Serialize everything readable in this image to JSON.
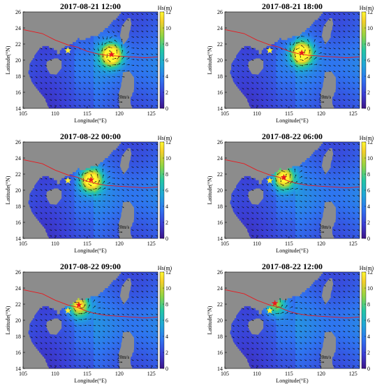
{
  "chart_data": [
    {
      "type": "heatmap",
      "title": "2017-08-21 12:00",
      "xlabel": "Longitude(°E)",
      "ylabel": "Latitude(°N)",
      "xlim": [
        105,
        126
      ],
      "ylim": [
        14,
        26
      ],
      "x_ticks": [
        105,
        110,
        115,
        120,
        125
      ],
      "y_ticks": [
        14,
        16,
        18,
        20,
        22,
        24,
        26
      ],
      "colorbar": {
        "label": "Hs(m)",
        "range": [
          0,
          12
        ],
        "ticks": [
          0,
          2,
          4,
          6,
          8,
          10,
          12
        ]
      },
      "vector_scale_label": "20m/s",
      "typhoon_center": {
        "lon": 118.8,
        "lat": 20.7
      },
      "reference_point": {
        "lon": 112.0,
        "lat": 21.2
      },
      "peak_hs": 11.5
    },
    {
      "type": "heatmap",
      "title": "2017-08-21 18:00",
      "xlabel": "Longitude(°E)",
      "ylabel": "Latitude(°N)",
      "xlim": [
        105,
        126
      ],
      "ylim": [
        14,
        26
      ],
      "x_ticks": [
        105,
        110,
        115,
        120,
        125
      ],
      "y_ticks": [
        14,
        16,
        18,
        20,
        22,
        24,
        26
      ],
      "colorbar": {
        "label": "Hs(m)",
        "range": [
          0,
          12
        ],
        "ticks": [
          0,
          2,
          4,
          6,
          8,
          10,
          12
        ]
      },
      "vector_scale_label": "20m/s",
      "typhoon_center": {
        "lon": 117.0,
        "lat": 20.9
      },
      "reference_point": {
        "lon": 112.0,
        "lat": 21.2
      },
      "peak_hs": 11.5
    },
    {
      "type": "heatmap",
      "title": "2017-08-22 00:00",
      "xlabel": "Longitude(°E)",
      "ylabel": "Latitude(°N)",
      "xlim": [
        105,
        126
      ],
      "ylim": [
        14,
        26
      ],
      "x_ticks": [
        105,
        110,
        115,
        120,
        125
      ],
      "y_ticks": [
        14,
        16,
        18,
        20,
        22,
        24,
        26
      ],
      "colorbar": {
        "label": "Hs(m)",
        "range": [
          0,
          12
        ],
        "ticks": [
          0,
          2,
          4,
          6,
          8,
          10,
          12
        ]
      },
      "vector_scale_label": "20m/s",
      "typhoon_center": {
        "lon": 115.6,
        "lat": 21.3
      },
      "reference_point": {
        "lon": 112.0,
        "lat": 21.2
      },
      "peak_hs": 11.0
    },
    {
      "type": "heatmap",
      "title": "2017-08-22 06:00",
      "xlabel": "Longitude(°E)",
      "ylabel": "Latitude(°N)",
      "xlim": [
        105,
        126
      ],
      "ylim": [
        14,
        26
      ],
      "x_ticks": [
        105,
        110,
        115,
        120,
        125
      ],
      "y_ticks": [
        14,
        16,
        18,
        20,
        22,
        24,
        26
      ],
      "colorbar": {
        "label": "Hs(m)",
        "range": [
          0,
          12
        ],
        "ticks": [
          0,
          2,
          4,
          6,
          8,
          10,
          12
        ]
      },
      "vector_scale_label": "20m/s",
      "typhoon_center": {
        "lon": 114.2,
        "lat": 21.6
      },
      "reference_point": {
        "lon": 112.0,
        "lat": 21.2
      },
      "peak_hs": 10.0
    },
    {
      "type": "heatmap",
      "title": "2017-08-22 09:00",
      "xlabel": "Longitude(°E)",
      "ylabel": "Latitude(°N)",
      "xlim": [
        105,
        126
      ],
      "ylim": [
        14,
        26
      ],
      "x_ticks": [
        105,
        110,
        115,
        120,
        125
      ],
      "y_ticks": [
        14,
        16,
        18,
        20,
        22,
        24,
        26
      ],
      "colorbar": {
        "label": "Hs(m)",
        "range": [
          0,
          12
        ],
        "ticks": [
          0,
          2,
          4,
          6,
          8,
          10,
          12
        ]
      },
      "vector_scale_label": "20m/s",
      "typhoon_center": {
        "lon": 113.7,
        "lat": 21.9
      },
      "reference_point": {
        "lon": 112.0,
        "lat": 21.2
      },
      "peak_hs": 9.0
    },
    {
      "type": "heatmap",
      "title": "2017-08-22 12:00",
      "xlabel": "Longitude(°E)",
      "ylabel": "Latitude(°N)",
      "xlim": [
        105,
        126
      ],
      "ylim": [
        14,
        26
      ],
      "x_ticks": [
        105,
        110,
        115,
        120,
        125
      ],
      "y_ticks": [
        14,
        16,
        18,
        20,
        22,
        24,
        26
      ],
      "colorbar": {
        "label": "Hs(m)",
        "range": [
          0,
          12
        ],
        "ticks": [
          0,
          2,
          4,
          6,
          8,
          10,
          12
        ]
      },
      "vector_scale_label": "20m/s",
      "typhoon_center": {
        "lon": 112.8,
        "lat": 22.1
      },
      "reference_point": {
        "lon": 112.0,
        "lat": 21.2
      },
      "peak_hs": 6.5
    }
  ],
  "typhoon_track": [
    [
      105,
      23.8
    ],
    [
      108,
      23.3
    ],
    [
      110,
      22.5
    ],
    [
      112,
      21.9
    ],
    [
      113.5,
      21.6
    ],
    [
      115,
      21.1
    ],
    [
      116.5,
      20.8
    ],
    [
      118,
      20.6
    ],
    [
      120,
      20.5
    ],
    [
      122,
      20.4
    ],
    [
      124,
      20.3
    ],
    [
      126,
      20.4
    ]
  ],
  "coastline": [
    [
      105,
      22.2
    ],
    [
      106.5,
      21.8
    ],
    [
      107.7,
      21.6
    ],
    [
      108.6,
      21.7
    ],
    [
      109.5,
      21.5
    ],
    [
      110.2,
      21.2
    ],
    [
      110.5,
      20.6
    ],
    [
      111.0,
      21.4
    ],
    [
      112.0,
      21.8
    ],
    [
      113.0,
      22.2
    ],
    [
      113.6,
      22.7
    ],
    [
      114.2,
      22.4
    ],
    [
      115.0,
      22.8
    ],
    [
      116.5,
      23.0
    ],
    [
      117.5,
      23.6
    ],
    [
      118.7,
      24.5
    ],
    [
      119.8,
      25.5
    ],
    [
      120.5,
      26
    ]
  ],
  "hainan": [
    [
      108.6,
      19.2
    ],
    [
      109.2,
      18.3
    ],
    [
      110.2,
      18.2
    ],
    [
      111.0,
      19.0
    ],
    [
      111.0,
      19.9
    ],
    [
      110.3,
      20.2
    ],
    [
      109.5,
      20.1
    ],
    [
      108.7,
      19.8
    ]
  ],
  "taiwan": [
    [
      120.1,
      23.0
    ],
    [
      120.7,
      22.0
    ],
    [
      121.3,
      22.6
    ],
    [
      121.9,
      24.5
    ],
    [
      121.7,
      25.2
    ],
    [
      121.2,
      25.1
    ],
    [
      120.4,
      24.2
    ]
  ],
  "vietnam": [
    [
      105,
      22.2
    ],
    [
      106.5,
      21.8
    ],
    [
      107.7,
      21.6
    ],
    [
      106.8,
      20.6
    ],
    [
      106.0,
      19.5
    ],
    [
      105.8,
      18.4
    ],
    [
      106.4,
      17.2
    ],
    [
      107.2,
      16.3
    ],
    [
      108.3,
      15.3
    ],
    [
      109.0,
      14.0
    ],
    [
      105,
      14
    ]
  ],
  "philippines": [
    [
      120.0,
      14.0
    ],
    [
      119.9,
      15.8
    ],
    [
      120.3,
      16.8
    ],
    [
      120.6,
      18.5
    ],
    [
      121.6,
      18.6
    ],
    [
      122.3,
      17.8
    ],
    [
      122.3,
      16.4
    ],
    [
      121.6,
      15.0
    ],
    [
      122.0,
      14.0
    ]
  ],
  "colors": {
    "land": "#8c8c8c",
    "track": "#e8191e",
    "star_center": "#e8191e",
    "star_reference": "#ffef33",
    "arrow": "#111111"
  }
}
